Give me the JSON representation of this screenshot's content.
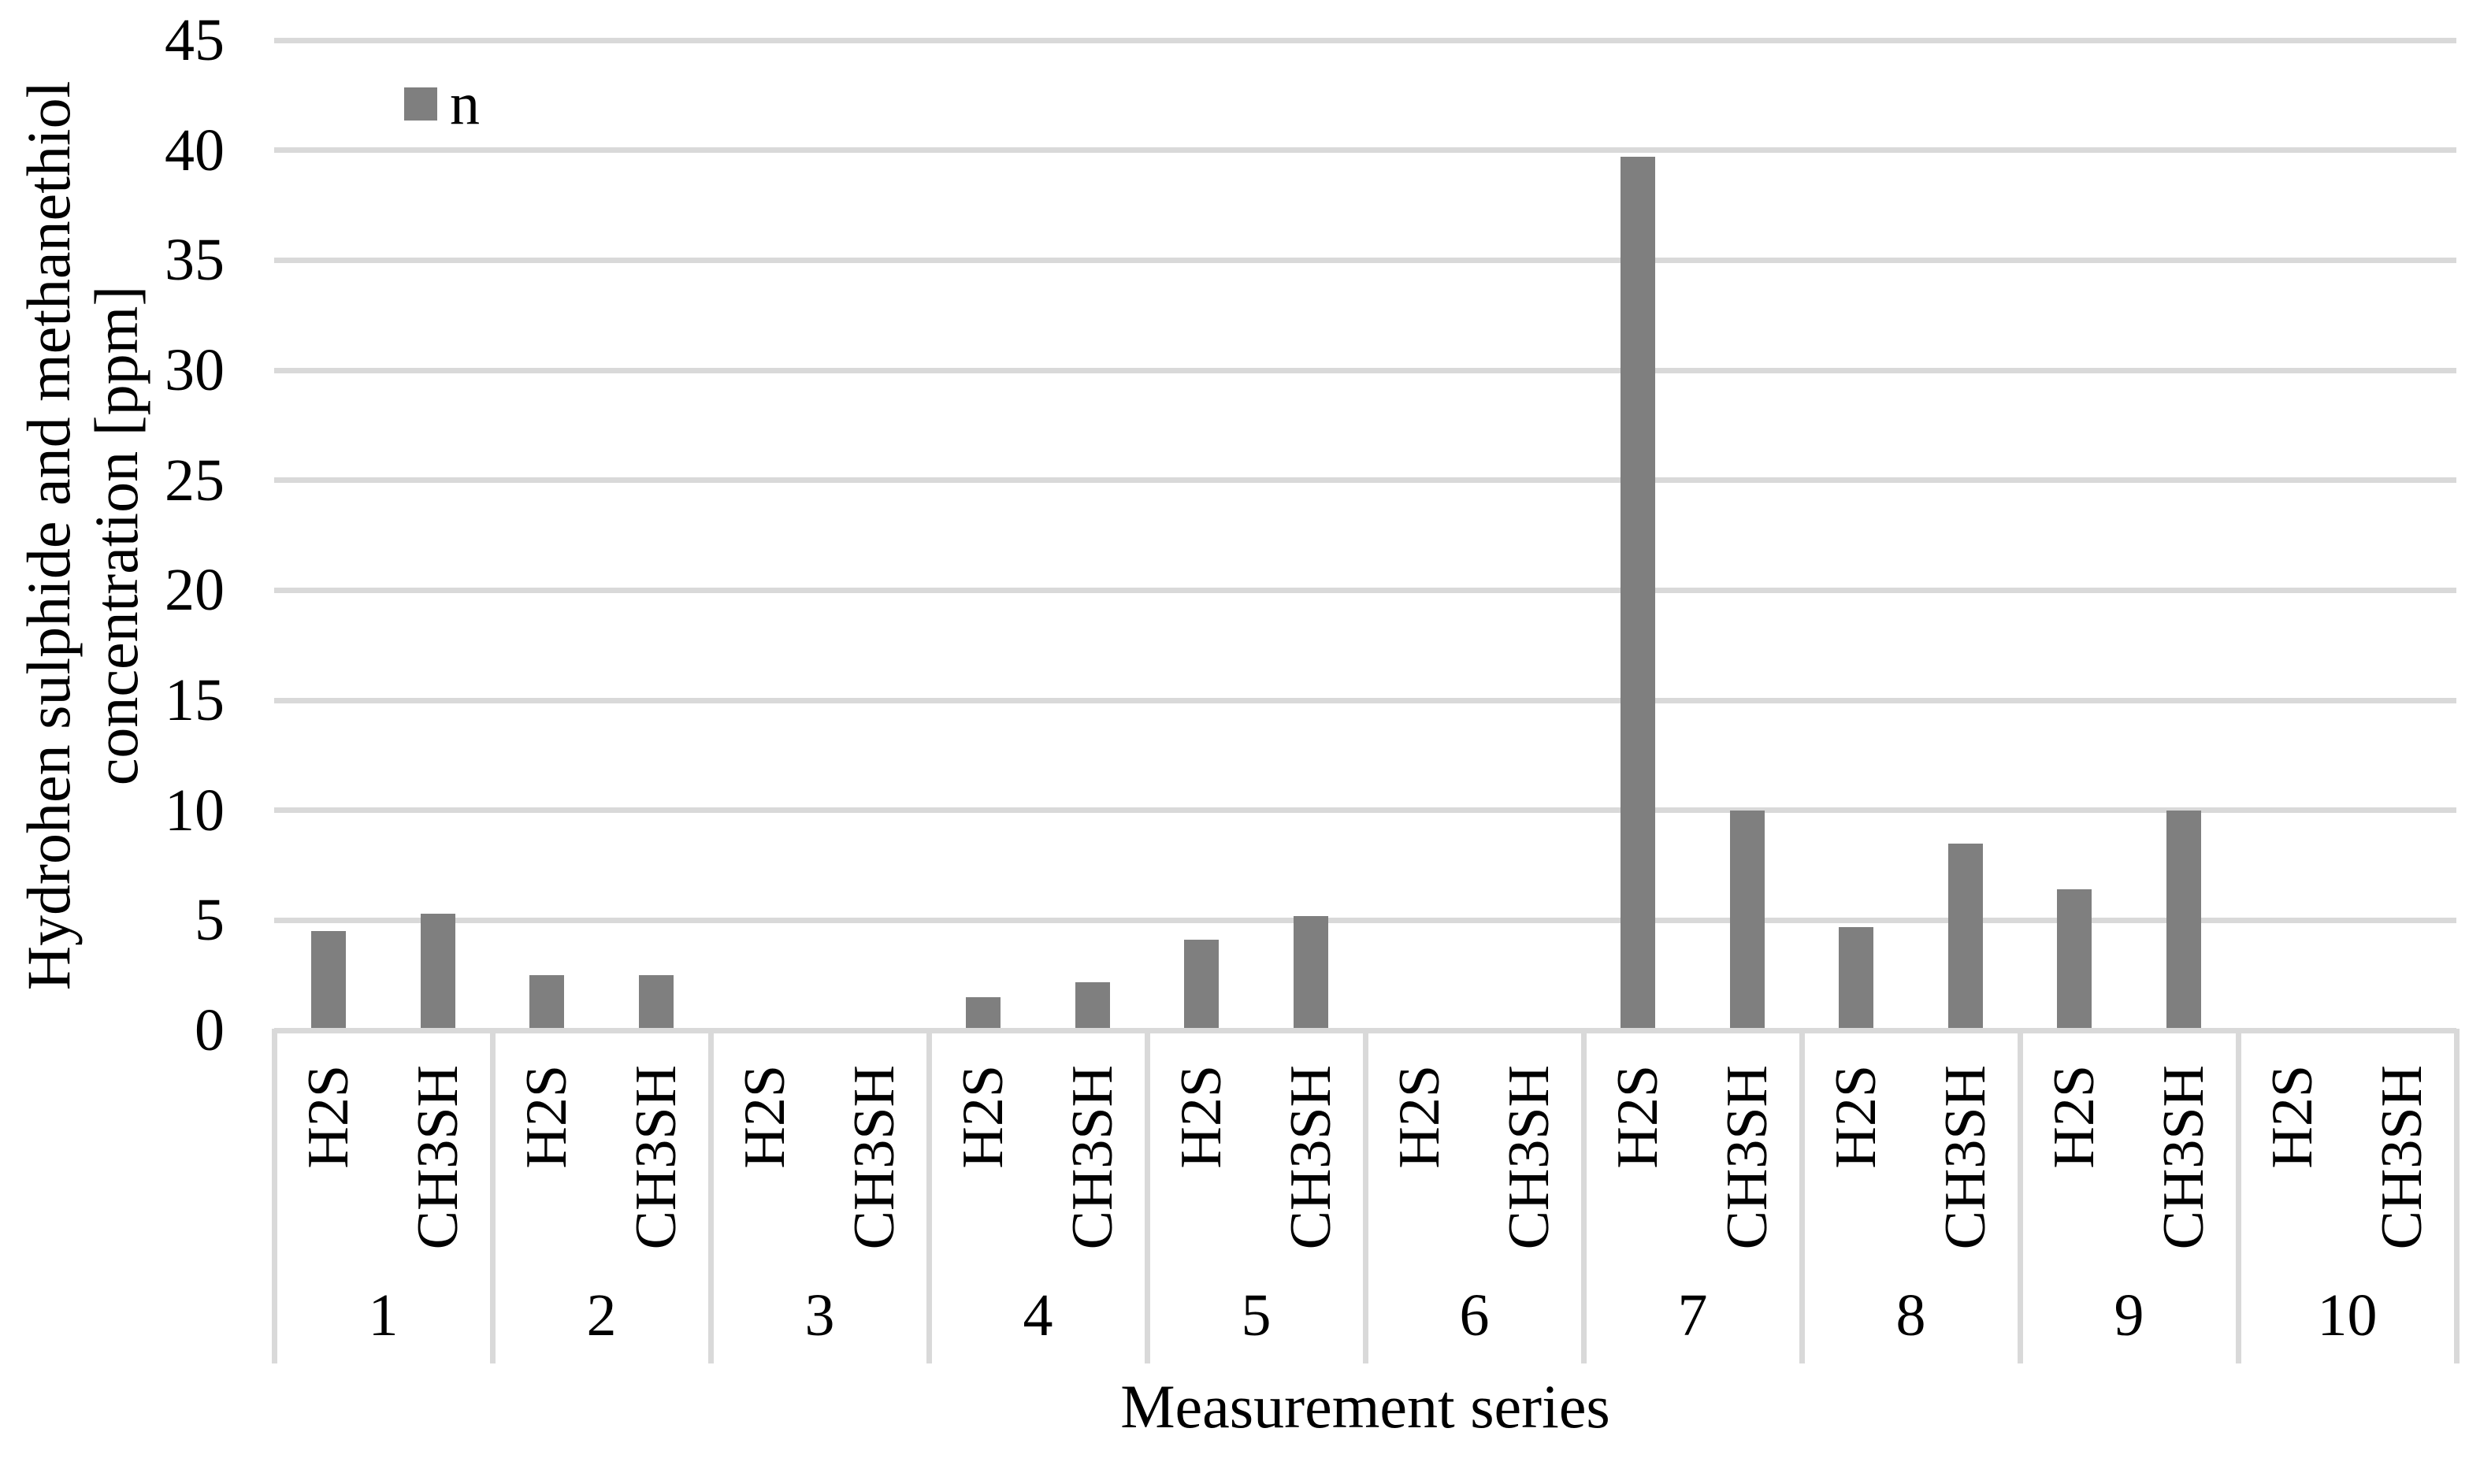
{
  "chart_data": {
    "type": "bar",
    "title": "",
    "xlabel": "Measurement series",
    "ylabel_line1": "Hydrohen sulphide and methanethiol",
    "ylabel_line2": "concentration [ppm]",
    "ylim": [
      0,
      45
    ],
    "y_ticks": [
      0,
      5,
      10,
      15,
      20,
      25,
      30,
      35,
      40,
      45
    ],
    "grid": "horizontal",
    "legend_position": "top-left-inside",
    "legend_entries": [
      {
        "label": "n",
        "color": "#7f7f7f"
      }
    ],
    "categories": [
      "1",
      "2",
      "3",
      "4",
      "5",
      "6",
      "7",
      "8",
      "9",
      "10"
    ],
    "sub_categories": [
      "H2S",
      "CH3SH"
    ],
    "series": [
      {
        "name": "n",
        "values_by_category": [
          {
            "category": "1",
            "H2S": 4.5,
            "CH3SH": 5.3
          },
          {
            "category": "2",
            "H2S": 2.5,
            "CH3SH": 2.5
          },
          {
            "category": "3",
            "H2S": 0,
            "CH3SH": 0
          },
          {
            "category": "4",
            "H2S": 1.5,
            "CH3SH": 2.2
          },
          {
            "category": "5",
            "H2S": 4.1,
            "CH3SH": 5.2
          },
          {
            "category": "6",
            "H2S": 0,
            "CH3SH": 0
          },
          {
            "category": "7",
            "H2S": 39.7,
            "CH3SH": 10.0
          },
          {
            "category": "8",
            "H2S": 4.7,
            "CH3SH": 8.5
          },
          {
            "category": "9",
            "H2S": 6.4,
            "CH3SH": 10.0
          },
          {
            "category": "10",
            "H2S": 0,
            "CH3SH": 0
          }
        ]
      }
    ]
  },
  "colors": {
    "bar_fill": "#7f7f7f",
    "gridline": "#d9d9d9",
    "axis_line": "#d9d9d9",
    "text": "#000000",
    "background": "#ffffff"
  }
}
